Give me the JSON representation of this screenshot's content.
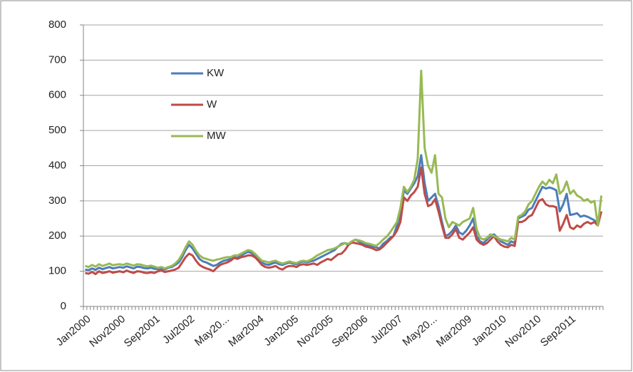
{
  "chart_data": {
    "type": "line",
    "categories": [
      "Jan2000",
      null,
      null,
      null,
      null,
      null,
      null,
      null,
      null,
      null,
      "Nov2000",
      null,
      null,
      null,
      null,
      null,
      null,
      null,
      null,
      null,
      "Sep2001",
      null,
      null,
      null,
      null,
      null,
      null,
      null,
      null,
      null,
      "Jul2002",
      null,
      null,
      null,
      null,
      null,
      null,
      null,
      null,
      null,
      "May20...",
      null,
      null,
      null,
      null,
      null,
      null,
      null,
      null,
      null,
      "Mar2004",
      null,
      null,
      null,
      null,
      null,
      null,
      null,
      null,
      null,
      "Jan2005",
      null,
      null,
      null,
      null,
      null,
      null,
      null,
      null,
      null,
      "Nov2005",
      null,
      null,
      null,
      null,
      null,
      null,
      null,
      null,
      null,
      "Sep2006",
      null,
      null,
      null,
      null,
      null,
      null,
      null,
      null,
      null,
      "Jul2007",
      null,
      null,
      null,
      null,
      null,
      null,
      null,
      null,
      null,
      "May20...",
      null,
      null,
      null,
      null,
      null,
      null,
      null,
      null,
      null,
      "Mar2009",
      null,
      null,
      null,
      null,
      null,
      null,
      null,
      null,
      null,
      "Jan2010",
      null,
      null,
      null,
      null,
      null,
      null,
      null,
      null,
      null,
      "Nov2010",
      null,
      null,
      null,
      null,
      null,
      null,
      null,
      null,
      null,
      "Sep2011",
      null,
      null,
      null,
      null,
      null,
      null,
      null,
      null,
      null
    ],
    "series": [
      {
        "name": "KW",
        "color": "#4a7ebb",
        "values": [
          105,
          103,
          108,
          104,
          110,
          106,
          109,
          112,
          108,
          110,
          112,
          110,
          114,
          111,
          108,
          113,
          112,
          109,
          108,
          110,
          107,
          106,
          108,
          105,
          110,
          112,
          118,
          125,
          140,
          160,
          175,
          165,
          150,
          135,
          128,
          125,
          120,
          115,
          118,
          125,
          130,
          132,
          135,
          140,
          138,
          145,
          150,
          155,
          152,
          145,
          135,
          125,
          120,
          118,
          122,
          125,
          120,
          118,
          122,
          125,
          122,
          120,
          125,
          128,
          125,
          128,
          130,
          135,
          140,
          145,
          150,
          155,
          160,
          170,
          178,
          180,
          175,
          185,
          190,
          185,
          180,
          175,
          172,
          170,
          168,
          165,
          178,
          185,
          195,
          200,
          230,
          260,
          330,
          320,
          335,
          350,
          370,
          430,
          350,
          300,
          310,
          320,
          285,
          240,
          200,
          205,
          215,
          230,
          210,
          205,
          215,
          230,
          250,
          200,
          185,
          180,
          190,
          200,
          205,
          195,
          185,
          180,
          175,
          185,
          180,
          250,
          255,
          260,
          275,
          280,
          300,
          320,
          340,
          335,
          338,
          335,
          330,
          270,
          290,
          320,
          260,
          262,
          265,
          255,
          258,
          255,
          250,
          245,
          235,
          270
        ]
      },
      {
        "name": "W",
        "color": "#be4b48",
        "values": [
          95,
          93,
          98,
          92,
          100,
          95,
          97,
          100,
          96,
          98,
          100,
          97,
          102,
          98,
          95,
          100,
          99,
          96,
          95,
          97,
          95,
          100,
          102,
          98,
          100,
          102,
          105,
          110,
          125,
          140,
          150,
          145,
          130,
          118,
          112,
          108,
          105,
          100,
          110,
          118,
          122,
          125,
          130,
          138,
          135,
          140,
          142,
          145,
          145,
          140,
          130,
          118,
          112,
          110,
          112,
          115,
          108,
          105,
          112,
          115,
          115,
          112,
          118,
          120,
          118,
          120,
          122,
          118,
          125,
          130,
          135,
          132,
          140,
          148,
          150,
          160,
          175,
          182,
          180,
          178,
          175,
          170,
          168,
          165,
          160,
          162,
          170,
          180,
          190,
          200,
          215,
          240,
          310,
          300,
          315,
          325,
          340,
          395,
          320,
          285,
          290,
          305,
          270,
          230,
          195,
          195,
          205,
          220,
          195,
          190,
          200,
          210,
          225,
          190,
          180,
          175,
          180,
          190,
          200,
          185,
          175,
          170,
          168,
          175,
          172,
          240,
          240,
          245,
          255,
          260,
          280,
          300,
          305,
          290,
          285,
          285,
          282,
          215,
          235,
          260,
          225,
          220,
          230,
          225,
          235,
          240,
          235,
          240,
          230,
          270
        ]
      },
      {
        "name": "MW",
        "color": "#98b954",
        "values": [
          115,
          112,
          118,
          113,
          120,
          115,
          118,
          122,
          117,
          119,
          120,
          118,
          122,
          119,
          116,
          120,
          119,
          116,
          114,
          116,
          113,
          110,
          112,
          108,
          112,
          115,
          122,
          132,
          148,
          168,
          185,
          175,
          158,
          145,
          138,
          135,
          132,
          130,
          133,
          135,
          138,
          140,
          140,
          145,
          145,
          150,
          155,
          160,
          158,
          150,
          140,
          130,
          128,
          125,
          128,
          130,
          125,
          122,
          125,
          128,
          125,
          123,
          128,
          130,
          128,
          132,
          138,
          145,
          150,
          155,
          160,
          162,
          165,
          170,
          175,
          180,
          178,
          185,
          190,
          188,
          185,
          180,
          178,
          175,
          172,
          180,
          190,
          198,
          210,
          225,
          240,
          280,
          340,
          325,
          340,
          360,
          420,
          670,
          450,
          400,
          380,
          430,
          320,
          310,
          250,
          225,
          240,
          235,
          230,
          240,
          245,
          250,
          280,
          220,
          195,
          190,
          195,
          205,
          200,
          195,
          190,
          188,
          185,
          195,
          190,
          255,
          260,
          270,
          290,
          300,
          320,
          340,
          355,
          345,
          360,
          350,
          375,
          320,
          330,
          355,
          320,
          330,
          315,
          310,
          300,
          305,
          295,
          300,
          230,
          315
        ]
      }
    ],
    "ylim": [
      0,
      800
    ],
    "yticks": [
      0,
      100,
      200,
      300,
      400,
      500,
      600,
      700,
      800
    ],
    "grid": true
  }
}
